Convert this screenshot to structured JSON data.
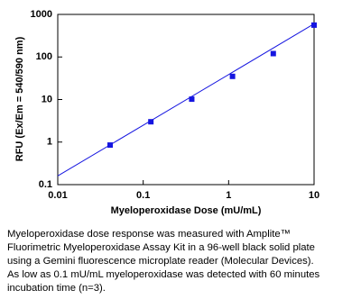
{
  "chart_data": {
    "type": "scatter",
    "x_label": "Myeloperoxidase Dose (mU/mL)",
    "y_label": "RFU (Ex/Em = 540/590 nm)",
    "x": [
      0.041,
      0.123,
      0.37,
      1.11,
      3.33,
      10
    ],
    "values": [
      0.85,
      3.0,
      10.2,
      35,
      120,
      560
    ],
    "color": "#1515e0",
    "fit_line": {
      "x": [
        0.01,
        10
      ],
      "values": [
        0.16,
        600
      ],
      "color": "#1515e0"
    },
    "log_x": true,
    "log_y": true,
    "xlim": [
      0.01,
      10
    ],
    "xticks": [
      0.01,
      0.1,
      1,
      10
    ],
    "ylim": [
      0.1,
      1000
    ],
    "yticks": [
      0.1,
      1,
      10,
      100,
      1000
    ]
  },
  "caption": [
    "Myeloperoxidase dose response was measured with Amplite™",
    "Fluorimetric Myeloperoxidase Assay Kit in a 96-well black solid plate",
    "using a Gemini fluorescence microplate reader (Molecular Devices).",
    "As low as 0.1 mU/mL myeloperoxidase was detected with 60 minutes",
    "incubation time (n=3)."
  ]
}
